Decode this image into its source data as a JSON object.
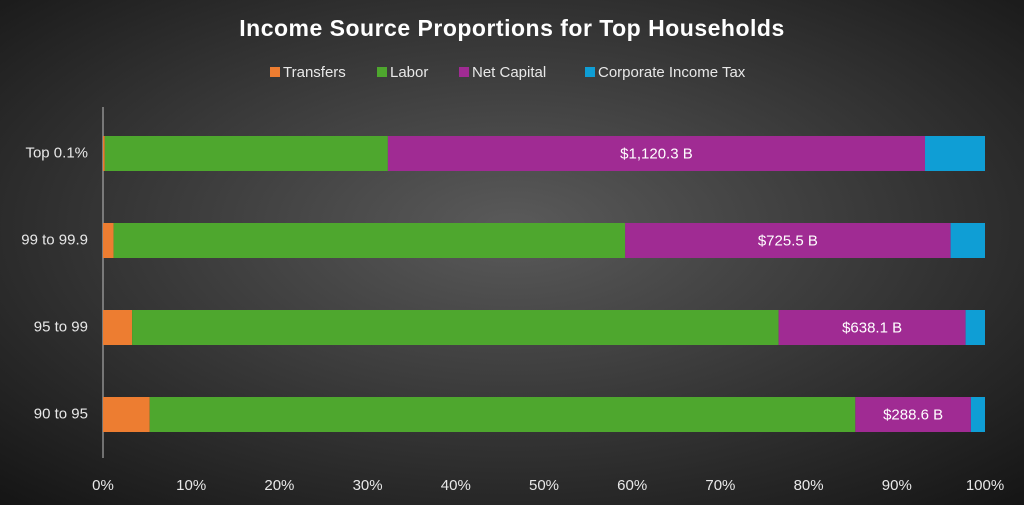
{
  "chart_data": {
    "type": "stacked_barh",
    "title": "Income Source Proportions for Top Households",
    "categories": [
      "Top 0.1%",
      "99 to 99.9",
      "95 to 99",
      "90 to 95"
    ],
    "series": [
      {
        "name": "Transfers",
        "color": "#ed7d31",
        "values": [
          0.2,
          1.2,
          3.3,
          5.3
        ]
      },
      {
        "name": "Labor",
        "color": "#4ea72e",
        "values": [
          32.1,
          58.0,
          73.3,
          80.0
        ]
      },
      {
        "name": "Net Capital",
        "color": "#a02b93",
        "values": [
          60.9,
          36.9,
          21.2,
          13.1
        ]
      },
      {
        "name": "Corporate Income Tax",
        "color": "#0f9ed5",
        "values": [
          6.8,
          3.9,
          2.2,
          1.6
        ]
      }
    ],
    "annotations": [
      "$1,120.3 B",
      "$725.5 B",
      "$638.1 B",
      "$288.6 B"
    ],
    "xlim": [
      0,
      100
    ],
    "xticks": [
      {
        "value": 0,
        "label": "0%"
      },
      {
        "value": 10,
        "label": "10%"
      },
      {
        "value": 20,
        "label": "20%"
      },
      {
        "value": 30,
        "label": "30%"
      },
      {
        "value": 40,
        "label": "40%"
      },
      {
        "value": 50,
        "label": "50%"
      },
      {
        "value": 60,
        "label": "60%"
      },
      {
        "value": 70,
        "label": "70%"
      },
      {
        "value": 80,
        "label": "80%"
      },
      {
        "value": 90,
        "label": "90%"
      },
      {
        "value": 100,
        "label": "100%"
      }
    ],
    "legend": "top",
    "grid": false
  }
}
